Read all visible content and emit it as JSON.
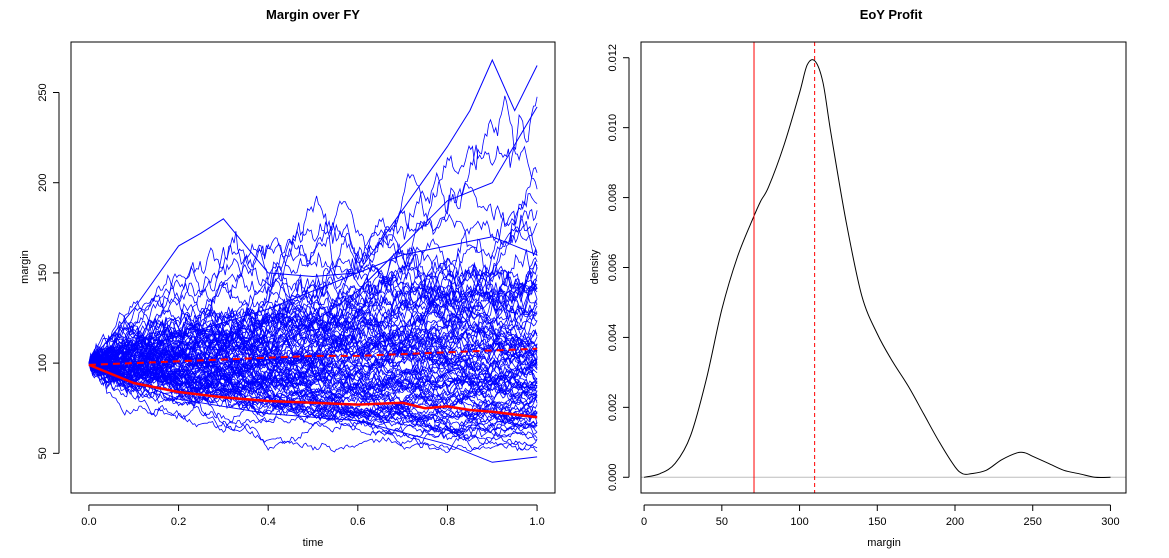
{
  "chart_data": [
    {
      "type": "line",
      "title": "Margin over FY",
      "xlabel": "time",
      "ylabel": "margin",
      "xlim": [
        -0.04,
        1.04
      ],
      "ylim": [
        28,
        278
      ],
      "x_ticks": [
        "0.0",
        "0.2",
        "0.4",
        "0.6",
        "0.8",
        "1.0"
      ],
      "y_ticks": [
        "50",
        "100",
        "150",
        "200",
        "250"
      ],
      "grid": false,
      "legend": "none",
      "n_paths": 100,
      "start_value": 100,
      "path_color": "#0000ff",
      "summary_color": "#ff0000",
      "series": [
        {
          "style": "solid",
          "x": [
            0,
            0.1,
            0.2,
            0.3,
            0.4,
            0.5,
            0.6,
            0.7,
            0.75,
            0.8,
            0.85,
            0.9,
            1.0
          ],
          "values": [
            99,
            89,
            84,
            81,
            79,
            78,
            77,
            78,
            75,
            76,
            74,
            73,
            70
          ]
        },
        {
          "style": "dashed",
          "x": [
            0,
            0.1,
            0.2,
            0.3,
            0.4,
            0.5,
            0.6,
            0.7,
            0.8,
            0.9,
            1.0
          ],
          "values": [
            99,
            100,
            101,
            102,
            103,
            104,
            104,
            105,
            106,
            107,
            108
          ]
        },
        {
          "style": "blue-sample",
          "x": [
            0,
            0.1,
            0.2,
            0.25,
            0.3,
            0.35,
            0.4,
            0.5,
            0.6,
            0.7,
            0.8,
            0.9,
            1.0
          ],
          "values": [
            100,
            130,
            165,
            172,
            180,
            165,
            150,
            148,
            150,
            160,
            165,
            170,
            160
          ]
        },
        {
          "style": "blue-sample",
          "x": [
            0,
            0.2,
            0.4,
            0.6,
            0.7,
            0.8,
            0.85,
            0.9,
            0.95,
            1.0
          ],
          "values": [
            100,
            115,
            130,
            150,
            185,
            220,
            240,
            268,
            240,
            265
          ]
        },
        {
          "style": "blue-sample",
          "x": [
            0,
            0.2,
            0.4,
            0.6,
            0.8,
            0.9,
            1.0
          ],
          "values": [
            100,
            95,
            105,
            140,
            190,
            200,
            242
          ]
        },
        {
          "style": "blue-sample",
          "x": [
            0,
            0.2,
            0.4,
            0.6,
            0.8,
            0.9,
            1.0
          ],
          "values": [
            100,
            80,
            72,
            68,
            55,
            45,
            48
          ]
        }
      ]
    },
    {
      "type": "line",
      "title": "EoY Profit",
      "xlabel": "margin",
      "ylabel": "density",
      "xlim": [
        -2,
        310
      ],
      "ylim": [
        -0.00045,
        0.01245
      ],
      "x_ticks": [
        "0",
        "50",
        "100",
        "150",
        "200",
        "250",
        "300"
      ],
      "y_ticks": [
        "0.000",
        "0.002",
        "0.004",
        "0.006",
        "0.008",
        "0.010",
        "0.012"
      ],
      "grid": false,
      "legend": "none",
      "series": [
        {
          "style": "density",
          "x": [
            0,
            10,
            20,
            30,
            40,
            50,
            60,
            70,
            75,
            80,
            90,
            100,
            105,
            110,
            115,
            120,
            130,
            140,
            150,
            160,
            170,
            180,
            190,
            200,
            205,
            210,
            220,
            230,
            240,
            245,
            250,
            260,
            270,
            280,
            290,
            300
          ],
          "values": [
            0.0,
            0.0001,
            0.0004,
            0.0012,
            0.0028,
            0.0048,
            0.0063,
            0.0074,
            0.0079,
            0.0083,
            0.0095,
            0.011,
            0.0118,
            0.0119,
            0.0113,
            0.0099,
            0.0073,
            0.0052,
            0.0041,
            0.0033,
            0.0026,
            0.0018,
            0.001,
            0.0003,
            0.0001,
            0.0001,
            0.0002,
            0.0005,
            0.0007,
            0.0007,
            0.0006,
            0.0004,
            0.0002,
            0.0001,
            0.0,
            0.0
          ]
        }
      ],
      "hlines": [
        0
      ],
      "vlines": [
        {
          "x": 70.7,
          "style": "solid"
        },
        {
          "x": 109.7,
          "style": "dashed"
        }
      ]
    }
  ]
}
